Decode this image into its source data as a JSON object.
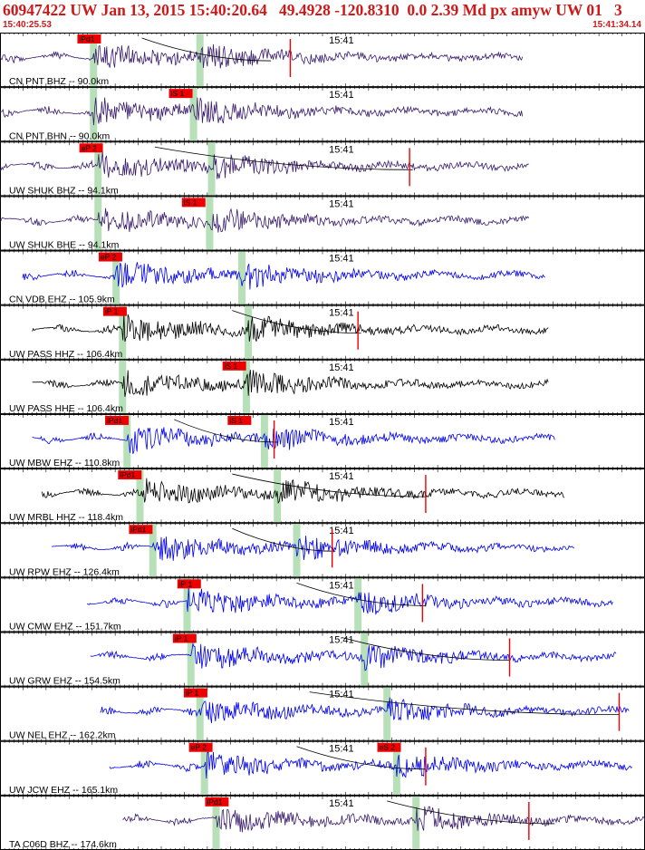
{
  "header": {
    "title": "60947422 UW Jan 13, 2015 15:40:20.64   49.4928 -120.8310  0.0 2.39 Md px amyw UW 01   3",
    "time_start": "15:40:25.53",
    "time_end": "15:41:34.14"
  },
  "chart_data": {
    "type": "line",
    "title": "",
    "x_range": [
      "15:40:25.53",
      "15:41:34.14"
    ],
    "minute_mark": "15:41",
    "colors": {
      "header_text": "#d01818",
      "pick_box": "#ee0000",
      "pick_window": "#b8e0b8",
      "trace_blue": "#0000ee",
      "trace_purple": "#3a1c6e",
      "trace_black": "#000000",
      "moveout_curve": "#000000"
    },
    "traces": [
      {
        "label": "CN PNT BHZ -- 90.0km",
        "color": "purple",
        "start": 0.0,
        "end": 0.81,
        "p_time": 0.145,
        "s_time": 0.31,
        "picks": [
          {
            "text": "iPd1",
            "t": 0.12
          }
        ],
        "red_ticks": [
          0.45
        ],
        "curve": [
          0.22,
          0.42
        ]
      },
      {
        "label": "CN PNT BHN -- 90.0km",
        "color": "purple",
        "start": 0.0,
        "end": 0.81,
        "p_time": 0.145,
        "s_time": 0.3,
        "picks": [
          {
            "text": "iS 1",
            "t": 0.262
          }
        ],
        "red_ticks": [],
        "curve": null
      },
      {
        "label": "UW SHUK BHZ -- 94.1km",
        "color": "purple",
        "start": 0.0,
        "end": 0.82,
        "p_time": 0.152,
        "s_time": 0.328,
        "picks": [
          {
            "text": "eP 2",
            "t": 0.123
          }
        ],
        "red_ticks": [
          0.635
        ],
        "curve": [
          0.24,
          0.64
        ]
      },
      {
        "label": "UW SHUK BHE -- 94.1km",
        "color": "purple",
        "start": 0.0,
        "end": 0.82,
        "p_time": 0.152,
        "s_time": 0.325,
        "picks": [
          {
            "text": "iS 1",
            "t": 0.282
          }
        ],
        "red_ticks": [],
        "curve": null
      },
      {
        "label": "CN VDB EHZ -- 105.9km",
        "color": "blue",
        "start": 0.035,
        "end": 0.845,
        "p_time": 0.18,
        "s_time": 0.375,
        "picks": [
          {
            "text": "eP 2",
            "t": 0.153
          }
        ],
        "red_ticks": [],
        "curve": null
      },
      {
        "label": "UW PASS HHZ -- 106.4km",
        "color": "black",
        "start": 0.05,
        "end": 0.85,
        "p_time": 0.19,
        "s_time": 0.385,
        "picks": [
          {
            "text": "iP 1",
            "t": 0.16
          }
        ],
        "red_ticks": [
          0.555
        ],
        "curve": [
          0.36,
          0.56
        ]
      },
      {
        "label": "UW PASS HHE -- 106.4km",
        "color": "black",
        "start": 0.05,
        "end": 0.85,
        "p_time": 0.19,
        "s_time": 0.382,
        "picks": [
          {
            "text": "iS 1",
            "t": 0.345
          }
        ],
        "red_ticks": [],
        "curve": null
      },
      {
        "label": "UW MBW EHZ -- 110.8km",
        "color": "blue",
        "start": 0.05,
        "end": 0.86,
        "p_time": 0.197,
        "s_time": 0.41,
        "picks": [
          {
            "text": "iPd1",
            "t": 0.163
          },
          {
            "text": "iS 1",
            "t": 0.353
          }
        ],
        "red_ticks": [
          0.425
        ],
        "curve": [
          0.27,
          0.43
        ]
      },
      {
        "label": "UW MRBL HHZ -- 118.4km",
        "color": "black",
        "start": 0.065,
        "end": 0.875,
        "p_time": 0.217,
        "s_time": 0.43,
        "picks": [
          {
            "text": "iPd1",
            "t": 0.183
          }
        ],
        "red_ticks": [
          0.66
        ],
        "curve": [
          0.36,
          0.66
        ]
      },
      {
        "label": "UW RPW EHZ -- 126.4km",
        "color": "blue",
        "start": 0.08,
        "end": 0.89,
        "p_time": 0.237,
        "s_time": 0.46,
        "picks": [
          {
            "text": "iPd1",
            "t": 0.2
          }
        ],
        "red_ticks": [
          0.515
        ],
        "curve": [
          0.36,
          0.52
        ]
      },
      {
        "label": "UW CMW EHZ -- 151.7km",
        "color": "blue",
        "start": 0.135,
        "end": 0.95,
        "p_time": 0.29,
        "s_time": 0.555,
        "picks": [
          {
            "text": "iP 1",
            "t": 0.275
          }
        ],
        "red_ticks": [
          0.655
        ],
        "curve": [
          0.46,
          0.66
        ]
      },
      {
        "label": "UW GRW EHZ -- 154.5km",
        "color": "blue",
        "start": 0.14,
        "end": 0.955,
        "p_time": 0.296,
        "s_time": 0.565,
        "picks": [
          {
            "text": "iP 1",
            "t": 0.268
          }
        ],
        "red_ticks": [
          0.79
        ],
        "curve": [
          0.53,
          0.79
        ]
      },
      {
        "label": "UW NEL EHZ -- 162.2km",
        "color": "blue",
        "start": 0.155,
        "end": 0.975,
        "p_time": 0.31,
        "s_time": 0.6,
        "picks": [
          {
            "text": "iP 1",
            "t": 0.285
          }
        ],
        "red_ticks": [
          0.96
        ],
        "curve": [
          0.48,
          0.96
        ]
      },
      {
        "label": "UW JCW EHZ -- 165.1km",
        "color": "blue",
        "start": 0.17,
        "end": 0.98,
        "p_time": 0.317,
        "s_time": 0.615,
        "picks": [
          {
            "text": "eP 2",
            "t": 0.293
          },
          {
            "text": "eS 2",
            "t": 0.585
          }
        ],
        "red_ticks": [
          0.66
        ],
        "curve": [
          0.46,
          0.66
        ]
      },
      {
        "label": "TA C06D BHZ -- 174.6km",
        "color": "purple",
        "start": 0.19,
        "end": 1.0,
        "p_time": 0.335,
        "s_time": 0.645,
        "picks": [
          {
            "text": "iPd1",
            "t": 0.318
          }
        ],
        "red_ticks": [
          0.82
        ],
        "curve": [
          0.6,
          0.86
        ]
      }
    ]
  }
}
